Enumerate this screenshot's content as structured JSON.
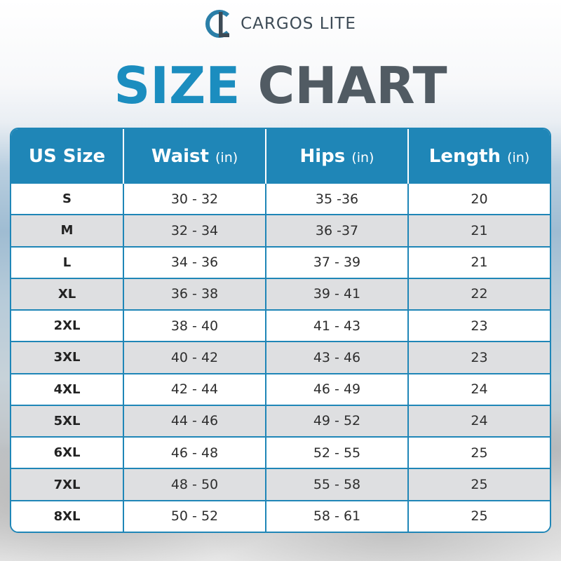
{
  "brand": {
    "name": "CARGOS LITE",
    "logo_icon": "cl-circle-logo-icon",
    "colors": {
      "blue": "#1b8dbf",
      "gray": "#515b63"
    }
  },
  "title": {
    "word1": "SIZE",
    "word2": "CHART"
  },
  "table": {
    "headers": [
      {
        "label": "US Size",
        "unit": ""
      },
      {
        "label": "Waist",
        "unit": "(in)"
      },
      {
        "label": "Hips",
        "unit": "(in)"
      },
      {
        "label": "Length",
        "unit": "(in)"
      }
    ],
    "rows": [
      [
        "S",
        "30 - 32",
        "35 -36",
        "20"
      ],
      [
        "M",
        "32 - 34",
        "36 -37",
        "21"
      ],
      [
        "L",
        "34 - 36",
        "37 - 39",
        "21"
      ],
      [
        "XL",
        "36 - 38",
        "39 - 41",
        "22"
      ],
      [
        "2XL",
        "38 - 40",
        "41 - 43",
        "23"
      ],
      [
        "3XL",
        "40 - 42",
        "43 - 46",
        "23"
      ],
      [
        "4XL",
        "42 - 44",
        "46 - 49",
        "24"
      ],
      [
        "5XL",
        "44 - 46",
        "49 - 52",
        "24"
      ],
      [
        "6XL",
        "46 - 48",
        "52 - 55",
        "25"
      ],
      [
        "7XL",
        "48 - 50",
        "55 - 58",
        "25"
      ],
      [
        "8XL",
        "50 - 52",
        "58 - 61",
        "25"
      ]
    ]
  }
}
